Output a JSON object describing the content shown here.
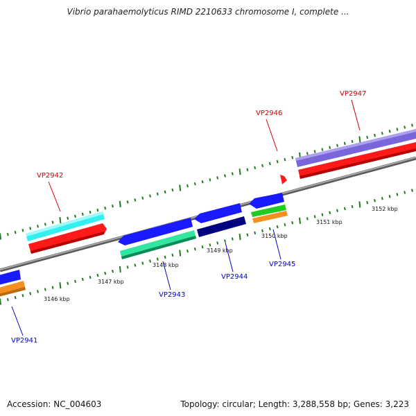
{
  "title": "Vibrio parahaemolyticus RIMD 2210633 chromosome I, complete ...",
  "footer": {
    "accession": "Accession: NC_004603",
    "summary": "Topology: circular; Length: 3,288,558 bp; Genes: 3,223"
  },
  "colors": {
    "backbone": "#8c8c8c",
    "tick": "#1f7a1f",
    "forward_label": "#cc0000",
    "reverse_label": "#0000cc"
  },
  "ruler": {
    "unit": "kbp",
    "labels": [
      "3146 kbp",
      "3147 kbp",
      "3148 kbp",
      "3149 kbp",
      "3150 kbp",
      "3151 kbp",
      "3152 kbp"
    ]
  },
  "genes": [
    {
      "id": "VP2941",
      "strand": "reverse"
    },
    {
      "id": "VP2942",
      "strand": "forward"
    },
    {
      "id": "VP2943",
      "strand": "reverse"
    },
    {
      "id": "VP2944",
      "strand": "reverse"
    },
    {
      "id": "VP2945",
      "strand": "reverse"
    },
    {
      "id": "VP2946",
      "strand": "forward"
    },
    {
      "id": "VP2947",
      "strand": "forward"
    }
  ]
}
